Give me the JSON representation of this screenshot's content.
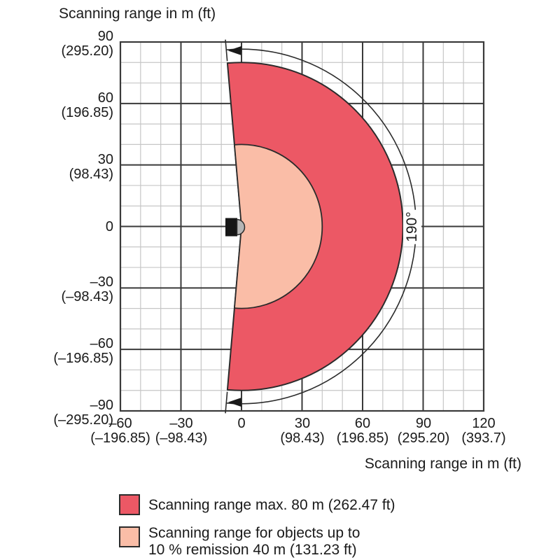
{
  "title_top": "Scanning range in m (ft)",
  "axis_bottom_title": "Scanning range in m (ft)",
  "angle_label": "190°",
  "y_ticks": [
    {
      "m": "90",
      "ft": "(295.20)"
    },
    {
      "m": "60",
      "ft": "(196.85)"
    },
    {
      "m": "30",
      "ft": "(98.43)"
    },
    {
      "m": "0",
      "ft": ""
    },
    {
      "m": "–30",
      "ft": "(–98.43)"
    },
    {
      "m": "–60",
      "ft": "(–196.85)"
    },
    {
      "m": "–90",
      "ft": "(–295.20)"
    }
  ],
  "x_ticks": [
    {
      "m": "–60",
      "ft": "(–196.85)"
    },
    {
      "m": "–30",
      "ft": "(–98.43)"
    },
    {
      "m": "0",
      "ft": ""
    },
    {
      "m": "30",
      "ft": "(98.43)"
    },
    {
      "m": "60",
      "ft": "(196.85)"
    },
    {
      "m": "90",
      "ft": "(295.20)"
    },
    {
      "m": "120",
      "ft": "(393.7)"
    }
  ],
  "legend": {
    "items": [
      {
        "swatch_color": "#EC5865",
        "line1": "Scanning range max. 80 m (262.47 ft)",
        "line2": ""
      },
      {
        "swatch_color": "#FABDA7",
        "line1": "Scanning range for objects up to",
        "line2": "10 % remission 40 m (131.23 ft)"
      }
    ]
  },
  "colors": {
    "max_range_fill": "#EC5865",
    "remission_fill": "#FABDA7",
    "outline": "#2b2b2b",
    "grid_minor": "#c6c6c6",
    "grid_major": "#3a3a3a",
    "text": "#1a1a1a",
    "sensor_body": "#161616",
    "sensor_dome": "#b5b5b5"
  },
  "chart_data": {
    "type": "area",
    "title": "Scanning range in m (ft)",
    "xlabel": "Scanning range in m (ft)",
    "ylabel": "Scanning range in m (ft)",
    "xlim": [
      -60,
      120
    ],
    "ylim": [
      -90,
      90
    ],
    "x_ticks_m": [
      -60,
      -30,
      0,
      30,
      60,
      90,
      120
    ],
    "x_ticks_ft": [
      -196.85,
      -98.43,
      0,
      98.43,
      196.85,
      295.2,
      393.7
    ],
    "y_ticks_m": [
      90,
      60,
      30,
      0,
      -30,
      -60,
      -90
    ],
    "y_ticks_ft": [
      295.2,
      196.85,
      98.43,
      0,
      -98.43,
      -196.85,
      -295.2
    ],
    "grid": true,
    "grid_minor_step_m": 10,
    "grid_major_step_m": 30,
    "sensor_position_m": [
      0,
      0
    ],
    "scan_angle_deg": 190,
    "angle_annotation": "190°",
    "legend_position": "bottom",
    "series": [
      {
        "name": "Scanning range max. 80 m (262.47 ft)",
        "shape": "sector",
        "radius_m": 80,
        "radius_ft": 262.47,
        "angle_deg": 190,
        "color": "#EC5865"
      },
      {
        "name": "Scanning range for objects up to 10 % remission 40 m (131.23 ft)",
        "shape": "sector",
        "radius_m": 40,
        "radius_ft": 131.23,
        "angle_deg": 190,
        "color": "#FABDA7"
      }
    ]
  }
}
